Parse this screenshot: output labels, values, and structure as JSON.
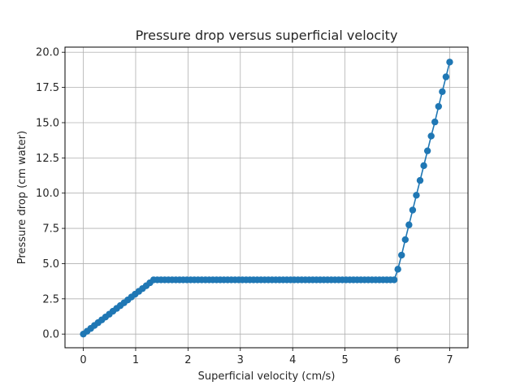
{
  "chart_data": {
    "type": "line",
    "title": "Pressure drop versus superficial velocity",
    "xlabel": "Superficial velocity (cm/s)",
    "ylabel": "Pressure drop (cm water)",
    "xlim": [
      -0.35,
      7.35
    ],
    "ylim": [
      -0.97,
      20.36
    ],
    "xticks": [
      0,
      1,
      2,
      3,
      4,
      5,
      6,
      7
    ],
    "xtick_labels": [
      "0",
      "1",
      "2",
      "3",
      "4",
      "5",
      "6",
      "7"
    ],
    "yticks": [
      0,
      2.5,
      5,
      7.5,
      10,
      12.5,
      15,
      17.5,
      20
    ],
    "ytick_labels": [
      "0.0",
      "2.5",
      "5.0",
      "7.5",
      "10.0",
      "12.5",
      "15.0",
      "17.5",
      "20.0"
    ],
    "grid": true,
    "series": [
      {
        "color": "#1f77b4",
        "marker": "circle",
        "x": [
          0.0,
          0.0707,
          0.1414,
          0.2121,
          0.2828,
          0.3535,
          0.4242,
          0.4949,
          0.5657,
          0.6364,
          0.7071,
          0.7778,
          0.8485,
          0.9192,
          0.9899,
          1.0606,
          1.1313,
          1.202,
          1.2727,
          1.3434,
          1.4141,
          1.4848,
          1.5556,
          1.6263,
          1.697,
          1.7677,
          1.8384,
          1.9091,
          1.9798,
          2.0505,
          2.1212,
          2.1919,
          2.2626,
          2.3333,
          2.404,
          2.4747,
          2.5455,
          2.6162,
          2.6869,
          2.7576,
          2.8283,
          2.899,
          2.9697,
          3.0404,
          3.1111,
          3.1818,
          3.2525,
          3.3232,
          3.3939,
          3.4646,
          3.5354,
          3.6061,
          3.6768,
          3.7475,
          3.8182,
          3.8889,
          3.9596,
          4.0303,
          4.101,
          4.1717,
          4.2424,
          4.3131,
          4.3838,
          4.4545,
          4.5253,
          4.596,
          4.6667,
          4.7374,
          4.8081,
          4.8788,
          4.9495,
          5.0202,
          5.0909,
          5.1616,
          5.2323,
          5.303,
          5.3737,
          5.4444,
          5.5152,
          5.5859,
          5.6566,
          5.7273,
          5.798,
          5.8687,
          5.9394,
          6.0101,
          6.0808,
          6.1515,
          6.2222,
          6.2929,
          6.3636,
          6.4343,
          6.5051,
          6.5758,
          6.6465,
          6.7172,
          6.7879,
          6.8586,
          6.9293,
          7.0
        ],
        "y": [
          0.0,
          0.2,
          0.4,
          0.61,
          0.81,
          1.01,
          1.21,
          1.41,
          1.62,
          1.82,
          2.02,
          2.22,
          2.42,
          2.63,
          2.83,
          3.03,
          3.23,
          3.43,
          3.64,
          3.85,
          3.85,
          3.85,
          3.85,
          3.85,
          3.85,
          3.85,
          3.85,
          3.85,
          3.85,
          3.85,
          3.85,
          3.85,
          3.85,
          3.85,
          3.85,
          3.85,
          3.85,
          3.85,
          3.85,
          3.85,
          3.85,
          3.85,
          3.85,
          3.85,
          3.85,
          3.85,
          3.85,
          3.85,
          3.85,
          3.85,
          3.85,
          3.85,
          3.85,
          3.85,
          3.85,
          3.85,
          3.85,
          3.85,
          3.85,
          3.85,
          3.85,
          3.85,
          3.85,
          3.85,
          3.85,
          3.85,
          3.85,
          3.85,
          3.85,
          3.85,
          3.85,
          3.85,
          3.85,
          3.85,
          3.85,
          3.85,
          3.85,
          3.85,
          3.85,
          3.85,
          3.85,
          3.85,
          3.85,
          3.85,
          3.85,
          4.6,
          5.6,
          6.7,
          7.75,
          8.8,
          9.85,
          10.9,
          11.95,
          13.0,
          14.05,
          15.05,
          16.15,
          17.2,
          18.25,
          19.3
        ]
      }
    ]
  }
}
